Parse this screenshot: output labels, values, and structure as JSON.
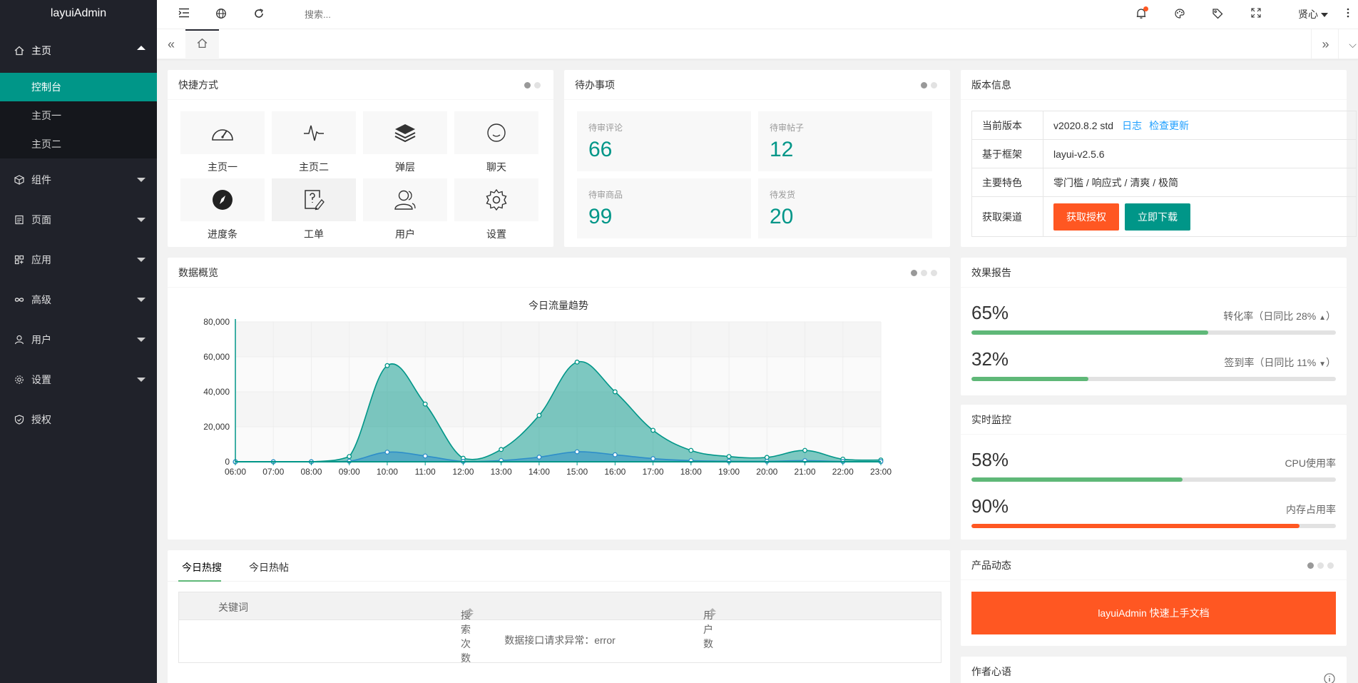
{
  "app": {
    "title": "layuiAdmin"
  },
  "sidebar": {
    "home": {
      "label": "主页",
      "icon": "home-icon"
    },
    "home_subitems": [
      {
        "label": "控制台",
        "active": true
      },
      {
        "label": "主页一"
      },
      {
        "label": "主页二"
      }
    ],
    "items": [
      {
        "label": "组件",
        "icon": "component-icon"
      },
      {
        "label": "页面",
        "icon": "page-icon"
      },
      {
        "label": "应用",
        "icon": "app-icon"
      },
      {
        "label": "高级",
        "icon": "infinity-icon"
      },
      {
        "label": "用户",
        "icon": "user-icon"
      },
      {
        "label": "设置",
        "icon": "settings-icon"
      },
      {
        "label": "授权",
        "icon": "auth-icon"
      }
    ]
  },
  "header": {
    "search_placeholder": "搜索...",
    "user_name": "贤心"
  },
  "shortcuts": {
    "title": "快捷方式",
    "items": [
      {
        "label": "主页一",
        "icon": "dashboard-icon"
      },
      {
        "label": "主页二",
        "icon": "pulse-icon"
      },
      {
        "label": "弹层",
        "icon": "layers-icon"
      },
      {
        "label": "聊天",
        "icon": "smile-icon"
      },
      {
        "label": "进度条",
        "icon": "compass-icon"
      },
      {
        "label": "工单",
        "icon": "ticket-icon"
      },
      {
        "label": "用户",
        "icon": "users-icon"
      },
      {
        "label": "设置",
        "icon": "gear-icon"
      }
    ]
  },
  "todo": {
    "title": "待办事项",
    "items": [
      {
        "label": "待审评论",
        "value": "66"
      },
      {
        "label": "待审帖子",
        "value": "12"
      },
      {
        "label": "待审商品",
        "value": "99"
      },
      {
        "label": "待发货",
        "value": "20"
      }
    ]
  },
  "version": {
    "title": "版本信息",
    "rows": [
      {
        "label": "当前版本",
        "value": "v2020.8.2 std",
        "link1": "日志",
        "link2": "检查更新"
      },
      {
        "label": "基于框架",
        "value": "layui-v2.5.6"
      },
      {
        "label": "主要特色",
        "value": "零门槛 / 响应式 / 清爽 / 极简"
      },
      {
        "label": "获取渠道",
        "btn1": "获取授权",
        "btn2": "立即下载"
      }
    ]
  },
  "overview": {
    "title": "数据概览"
  },
  "chart_data": {
    "type": "area",
    "title": "今日流量趋势",
    "x": [
      "06:00",
      "07:00",
      "08:00",
      "09:00",
      "10:00",
      "11:00",
      "12:00",
      "13:00",
      "14:00",
      "15:00",
      "16:00",
      "17:00",
      "18:00",
      "19:00",
      "20:00",
      "21:00",
      "22:00",
      "23:00"
    ],
    "y_ticks": [
      "0",
      "20,000",
      "40,000",
      "60,000",
      "80,000"
    ],
    "ylim": [
      0,
      80000
    ],
    "series": [
      {
        "values": [
          0,
          0,
          0,
          3000,
          55000,
          33000,
          2000,
          7000,
          26500,
          57000,
          40000,
          18000,
          6500,
          3000,
          2500,
          6500,
          1500,
          1000
        ]
      },
      {
        "values": [
          0,
          0,
          0,
          300,
          5500,
          3300,
          200,
          700,
          2650,
          5700,
          4000,
          1800,
          650,
          300,
          250,
          650,
          150,
          100
        ]
      }
    ],
    "colors": [
      "#009688",
      "#2ec7c9"
    ],
    "grid": true
  },
  "effect": {
    "title": "效果报告",
    "metrics": [
      {
        "value": "65%",
        "desc": "转化率（日同比 28%",
        "percent": 65,
        "trend": "up",
        "color": "#5fb878"
      },
      {
        "value": "32%",
        "desc": "签到率（日同比 11%",
        "percent": 32,
        "trend": "down",
        "color": "#5fb878"
      }
    ]
  },
  "monitor": {
    "title": "实时监控",
    "metrics": [
      {
        "value": "58%",
        "desc": "CPU使用率",
        "percent": 58,
        "color": "#5fb878"
      },
      {
        "value": "90%",
        "desc": "内存占用率",
        "percent": 90,
        "color": "#ff5722"
      }
    ]
  },
  "hot": {
    "tabs": [
      "今日热搜",
      "今日热帖"
    ],
    "columns": [
      "关键词",
      "搜索次数",
      "用户数"
    ],
    "empty_text": "数据接口请求异常：error"
  },
  "product": {
    "title": "产品动态",
    "doc_btn": "layuiAdmin 快速上手文档"
  },
  "author": {
    "title": "作者心语"
  }
}
